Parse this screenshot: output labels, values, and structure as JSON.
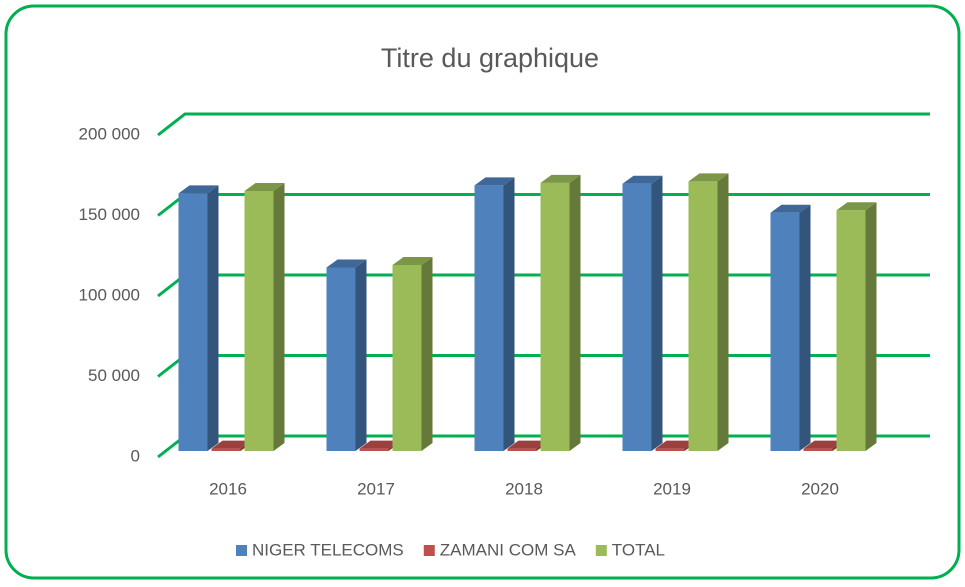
{
  "chart_data": {
    "type": "bar3d",
    "title": "Titre du graphique",
    "categories": [
      "2016",
      "2017",
      "2018",
      "2019",
      "2020"
    ],
    "series": [
      {
        "name": "NIGER TELECOMS",
        "color": "#4f81bd",
        "values": [
          160000,
          114000,
          165000,
          166000,
          148000
        ]
      },
      {
        "name": "ZAMANI COM SA",
        "color": "#c0504d",
        "values": [
          1500,
          1500,
          1500,
          1500,
          1500
        ]
      },
      {
        "name": "TOTAL",
        "color": "#9bbb59",
        "values": [
          161500,
          115500,
          166500,
          167500,
          149500
        ]
      }
    ],
    "ylim": [
      0,
      200000
    ],
    "yticks": [
      0,
      {
        "value": 50000,
        "label": "50 000"
      },
      {
        "value": 100000,
        "label": "100 000"
      },
      {
        "value": 150000,
        "label": "150 000"
      },
      {
        "value": 200000,
        "label": "200 000"
      }
    ],
    "grid": true,
    "grid_color": "#00b050",
    "legend": "bottom"
  }
}
